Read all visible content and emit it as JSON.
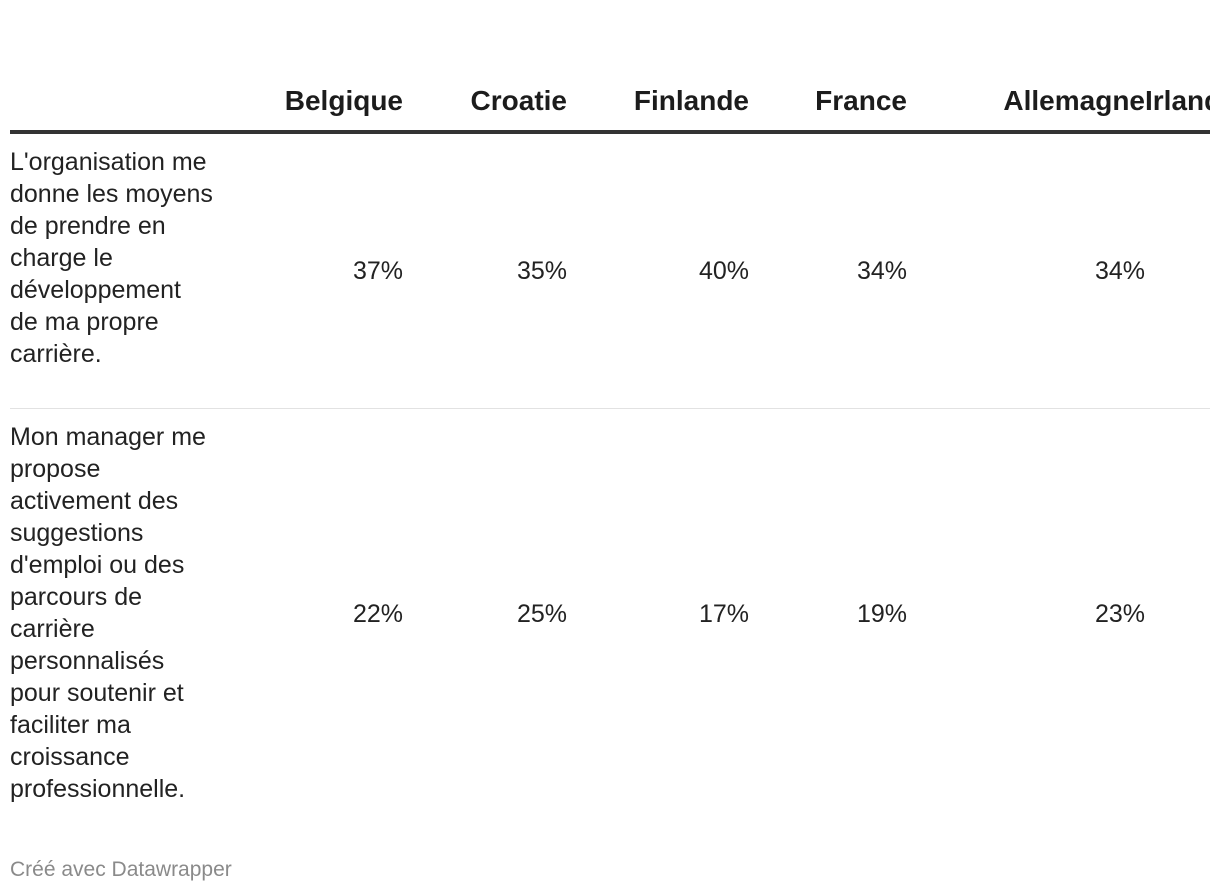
{
  "chart_data": {
    "type": "table",
    "columns": [
      "Belgique",
      "Croatie",
      "Finlande",
      "France",
      "Allemagne",
      "Irlande"
    ],
    "rows": [
      {
        "label": "L'organisation me donne les moyens de prendre en charge le développement de ma propre carrière.",
        "values": [
          "37%",
          "35%",
          "40%",
          "34%",
          "34%",
          ""
        ]
      },
      {
        "label": "Mon manager me propose activement des suggestions d'emploi ou des parcours de carrière personnalisés pour soutenir et faciliter ma croissance professionnelle.",
        "values": [
          "22%",
          "25%",
          "17%",
          "19%",
          "23%",
          ""
        ]
      }
    ]
  },
  "footer": {
    "credit": "Créé avec Datawrapper"
  }
}
